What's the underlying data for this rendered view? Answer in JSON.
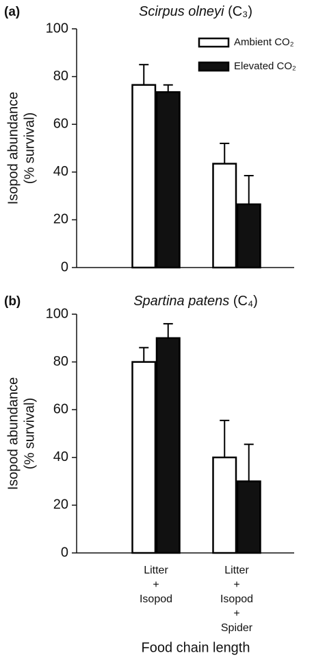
{
  "chart_data": [
    {
      "type": "bar",
      "panel_label": "(a)",
      "title": "Scirpus olneyi",
      "title_note": "(C₃)",
      "ylabel": [
        "Isopod abundance",
        "(% survival)"
      ],
      "categories": [
        null,
        null
      ],
      "ylim": [
        0,
        100
      ],
      "yticks": [
        0,
        20,
        40,
        60,
        80,
        100
      ],
      "edgecolor": "#000000",
      "legend": "upper right",
      "series": [
        {
          "name": "Ambient CO₂",
          "color": "#ffffff",
          "values": [
            76.5,
            43.5
          ],
          "errors": [
            8.5,
            8.5
          ]
        },
        {
          "name": "Elevated CO₂",
          "color": "#111111",
          "values": [
            73.5,
            26.5
          ],
          "errors": [
            3,
            12
          ]
        }
      ]
    },
    {
      "type": "bar",
      "panel_label": "(b)",
      "title": "Spartina patens",
      "title_note": "(C₄)",
      "ylabel": [
        "Isopod abundance",
        "(% survival)"
      ],
      "xlabel": "Food chain length",
      "categories": [
        [
          "Litter",
          "+",
          "Isopod"
        ],
        [
          "Litter",
          "+",
          "Isopod",
          "+",
          "Spider"
        ]
      ],
      "ylim": [
        0,
        100
      ],
      "yticks": [
        0,
        20,
        40,
        60,
        80,
        100
      ],
      "edgecolor": "#000000",
      "series": [
        {
          "color": "#ffffff",
          "values": [
            80,
            40
          ],
          "errors": [
            6,
            15.5
          ]
        },
        {
          "color": "#111111",
          "values": [
            90,
            30
          ],
          "errors": [
            6,
            15.5
          ]
        }
      ]
    }
  ]
}
